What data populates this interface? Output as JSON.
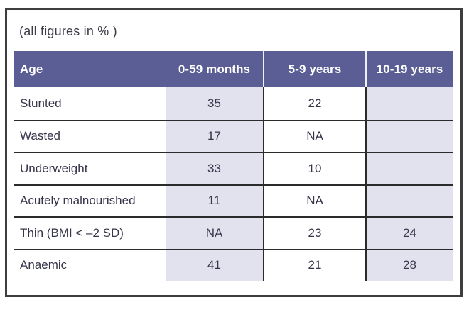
{
  "chart_data": {
    "type": "table",
    "caption": "(all figures in % )",
    "columns": [
      "Age",
      "0-59 months",
      "5-9 years",
      "10-19 years"
    ],
    "rows": [
      {
        "label": "Stunted",
        "values": [
          "35",
          "22",
          ""
        ]
      },
      {
        "label": "Wasted",
        "values": [
          "17",
          "NA",
          ""
        ]
      },
      {
        "label": "Underweight",
        "values": [
          "33",
          "10",
          ""
        ]
      },
      {
        "label": "Acutely malnourished",
        "values": [
          "11",
          "NA",
          ""
        ]
      },
      {
        "label": "Thin (BMI < –2 SD)",
        "values": [
          "NA",
          "23",
          "24"
        ]
      },
      {
        "label": "Anaemic",
        "values": [
          "41",
          "21",
          "28"
        ]
      }
    ],
    "layout": {
      "shaded_columns": [
        "0-59 months",
        "10-19 years"
      ],
      "grid": "horizontal lines between data rows; vertical lines between value columns"
    },
    "colors": {
      "header_background": "#5a5e95",
      "header_text": "#ffffff",
      "shaded_column_background": "#e2e2ee",
      "body_text": "#35354a",
      "grid_line": "#2b2b2b",
      "header_divider": "#eef0f8",
      "outer_frame": "#3e3e3e"
    }
  }
}
